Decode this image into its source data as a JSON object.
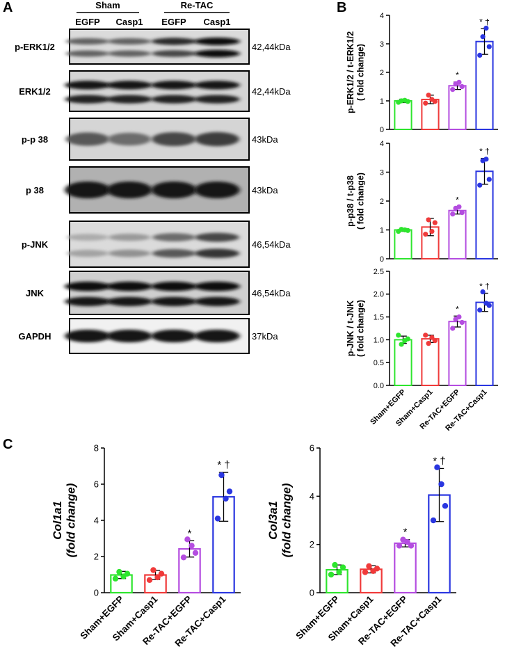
{
  "panel_labels": {
    "a": "A",
    "b": "B",
    "c": "C"
  },
  "blot": {
    "groups": [
      {
        "label": "Sham"
      },
      {
        "label": "Re-TAC"
      }
    ],
    "lanes": [
      "EGFP",
      "Casp1",
      "EGFP",
      "Casp1"
    ],
    "rows": [
      {
        "label": "p-ERK1/2",
        "size": "42,44kDa",
        "bands": [
          [
            0.55,
            0.55,
            0.85,
            1.0
          ],
          [
            0.55,
            0.55,
            0.7,
            1.0
          ]
        ],
        "bg": 0.3
      },
      {
        "label": "ERK1/2",
        "size": "42,44kDa",
        "bands": [
          [
            0.95,
            0.95,
            0.95,
            0.95
          ],
          [
            0.9,
            0.9,
            0.9,
            0.9
          ]
        ],
        "bg": 0.35
      },
      {
        "label": "p-p 38",
        "size": "43kDa",
        "bands": [
          [
            0.6,
            0.5,
            0.7,
            0.75
          ]
        ],
        "bg": 0.35
      },
      {
        "label": "p 38",
        "size": "43kDa",
        "bands": [
          [
            0.95,
            0.95,
            0.95,
            0.95
          ]
        ],
        "bg": 0.65
      },
      {
        "label": "p-JNK",
        "size": "46,54kDa",
        "bands": [
          [
            0.15,
            0.25,
            0.5,
            0.7
          ],
          [
            0.2,
            0.3,
            0.6,
            0.8
          ]
        ],
        "bg": 0.3
      },
      {
        "label": "JNK",
        "size": "46,54kDa",
        "bands": [
          [
            1.0,
            1.0,
            1.0,
            1.0
          ],
          [
            0.95,
            0.95,
            0.95,
            0.95
          ]
        ],
        "bg": 0.4
      },
      {
        "label": "GAPDH",
        "size": "37kDa",
        "bands": [
          [
            0.95,
            0.95,
            0.95,
            0.95
          ]
        ],
        "bg": 0.12
      }
    ]
  },
  "chart_data": [
    {
      "type": "bar",
      "id": "b1",
      "ylabel": [
        "p-ERK1/2 / t-ERK1/2",
        "( fold change)"
      ],
      "ylim": [
        0,
        4
      ],
      "yticks": [
        0,
        1,
        2,
        3,
        4
      ],
      "categories": [
        "Sham+EGFP",
        "Sham+Casp1",
        "Re-TAC+EGFP",
        "Re-TAC+Casp1"
      ],
      "values": [
        1.0,
        1.05,
        1.53,
        3.08
      ],
      "errors": [
        0.06,
        0.15,
        0.13,
        0.45
      ],
      "points": [
        [
          0.95,
          1.0,
          1.02,
          0.98
        ],
        [
          0.92,
          1.2,
          1.05,
          0.98
        ],
        [
          1.4,
          1.6,
          1.65,
          1.5
        ],
        [
          2.6,
          3.25,
          3.55,
          2.9
        ]
      ],
      "annotations": [
        "",
        "",
        "*",
        "* †"
      ],
      "colors": [
        "#2ee52e",
        "#f03a3a",
        "#b44de0",
        "#2a36e0"
      ],
      "show_xticks": false
    },
    {
      "type": "bar",
      "id": "b2",
      "ylabel": [
        "p-p38 / t-p38",
        "( fold change)"
      ],
      "ylim": [
        0,
        4
      ],
      "yticks": [
        0,
        1,
        2,
        3,
        4
      ],
      "categories": [
        "Sham+EGFP",
        "Sham+Casp1",
        "Re-TAC+EGFP",
        "Re-TAC+Casp1"
      ],
      "values": [
        1.0,
        1.1,
        1.67,
        3.03
      ],
      "errors": [
        0.05,
        0.3,
        0.12,
        0.45
      ],
      "points": [
        [
          0.95,
          1.02,
          1.0,
          0.98
        ],
        [
          0.85,
          1.35,
          0.95,
          1.25
        ],
        [
          1.55,
          1.75,
          1.8,
          1.6
        ],
        [
          2.55,
          3.4,
          3.45,
          2.75
        ]
      ],
      "annotations": [
        "",
        "",
        "*",
        "* †"
      ],
      "colors": [
        "#2ee52e",
        "#f03a3a",
        "#b44de0",
        "#2a36e0"
      ],
      "show_xticks": false
    },
    {
      "type": "bar",
      "id": "b3",
      "ylabel": [
        "p-JNK / t-JNK",
        "( fold change)"
      ],
      "ylim": [
        0,
        2.5
      ],
      "yticks": [
        0.0,
        0.5,
        1.0,
        1.5,
        2.0,
        2.5
      ],
      "categories": [
        "Sham+EGFP",
        "Sham+Casp1",
        "Re-TAC+EGFP",
        "Re-TAC+Casp1"
      ],
      "values": [
        1.0,
        1.02,
        1.4,
        1.82
      ],
      "errors": [
        0.08,
        0.08,
        0.12,
        0.2
      ],
      "points": [
        [
          1.1,
          0.9,
          0.98,
          1.02
        ],
        [
          1.1,
          0.92,
          1.05,
          0.98
        ],
        [
          1.25,
          1.45,
          1.5,
          1.38
        ],
        [
          1.65,
          2.05,
          1.8,
          1.75
        ]
      ],
      "annotations": [
        "",
        "",
        "*",
        "* †"
      ],
      "colors": [
        "#2ee52e",
        "#f03a3a",
        "#b44de0",
        "#2a36e0"
      ],
      "show_xticks": true
    },
    {
      "type": "bar",
      "id": "c1",
      "ylabel": [
        "Col1a1",
        "(fold change)"
      ],
      "ylim": [
        0,
        8
      ],
      "yticks": [
        0,
        2,
        4,
        6,
        8
      ],
      "categories": [
        "Sham+EGFP",
        "Sham+Casp1",
        "Re-TAC+EGFP",
        "Re-TAC+Casp1"
      ],
      "values": [
        0.98,
        0.98,
        2.42,
        5.3
      ],
      "errors": [
        0.2,
        0.25,
        0.45,
        1.35
      ],
      "points": [
        [
          0.78,
          1.15,
          0.9,
          1.05
        ],
        [
          0.7,
          1.25,
          0.85,
          1.05
        ],
        [
          1.95,
          2.95,
          2.6,
          2.2
        ],
        [
          4.1,
          6.5,
          5.2,
          5.6
        ]
      ],
      "annotations": [
        "",
        "",
        "*",
        "* †"
      ],
      "colors": [
        "#2ee52e",
        "#f03a3a",
        "#b44de0",
        "#2a36e0"
      ],
      "show_xticks": true
    },
    {
      "type": "bar",
      "id": "c2",
      "ylabel": [
        "Col3a1",
        "(fold change)"
      ],
      "ylim": [
        0,
        6
      ],
      "yticks": [
        0,
        2,
        4,
        6
      ],
      "categories": [
        "Sham+EGFP",
        "Sham+Casp1",
        "Re-TAC+EGFP",
        "Re-TAC+Casp1"
      ],
      "values": [
        0.95,
        0.97,
        2.05,
        4.05
      ],
      "errors": [
        0.2,
        0.15,
        0.15,
        1.1
      ],
      "points": [
        [
          0.75,
          1.15,
          0.85,
          1.05
        ],
        [
          0.85,
          1.1,
          0.9,
          1.0
        ],
        [
          1.95,
          2.2,
          2.1,
          1.95
        ],
        [
          3.0,
          5.2,
          4.5,
          3.6
        ]
      ],
      "annotations": [
        "",
        "",
        "*",
        "* †"
      ],
      "colors": [
        "#2ee52e",
        "#f03a3a",
        "#b44de0",
        "#2a36e0"
      ],
      "show_xticks": true
    }
  ]
}
